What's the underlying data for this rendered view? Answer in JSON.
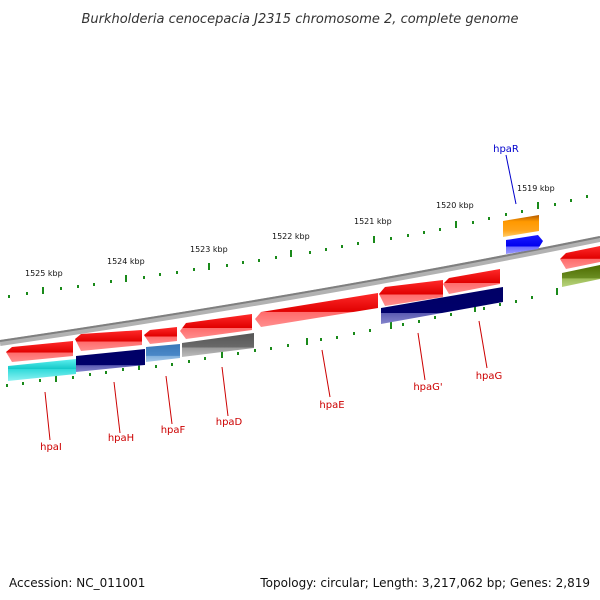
{
  "map": {
    "title": "Burkholderia cenocepacia J2315 chromosome 2, complete genome",
    "accession": "Accession: NC_011001",
    "summary": "Topology: circular; Length: 3,217,062 bp; Genes: 2,819",
    "tick_labels": [
      "1525 kbp",
      "1524 kbp",
      "1523 kbp",
      "1522 kbp",
      "1521 kbp",
      "1520 kbp",
      "1519 kbp"
    ],
    "genes": [
      {
        "label": "hpaI",
        "color": "#cc0000"
      },
      {
        "label": "hpaH",
        "color": "#cc0000"
      },
      {
        "label": "hpaF",
        "color": "#cc0000"
      },
      {
        "label": "hpaD",
        "color": "#cc0000"
      },
      {
        "label": "hpaE",
        "color": "#cc0000"
      },
      {
        "label": "hpaG'",
        "color": "#cc0000"
      },
      {
        "label": "hpaG",
        "color": "#cc0000"
      },
      {
        "label": "hpaR",
        "color": "#0000cc"
      }
    ]
  }
}
